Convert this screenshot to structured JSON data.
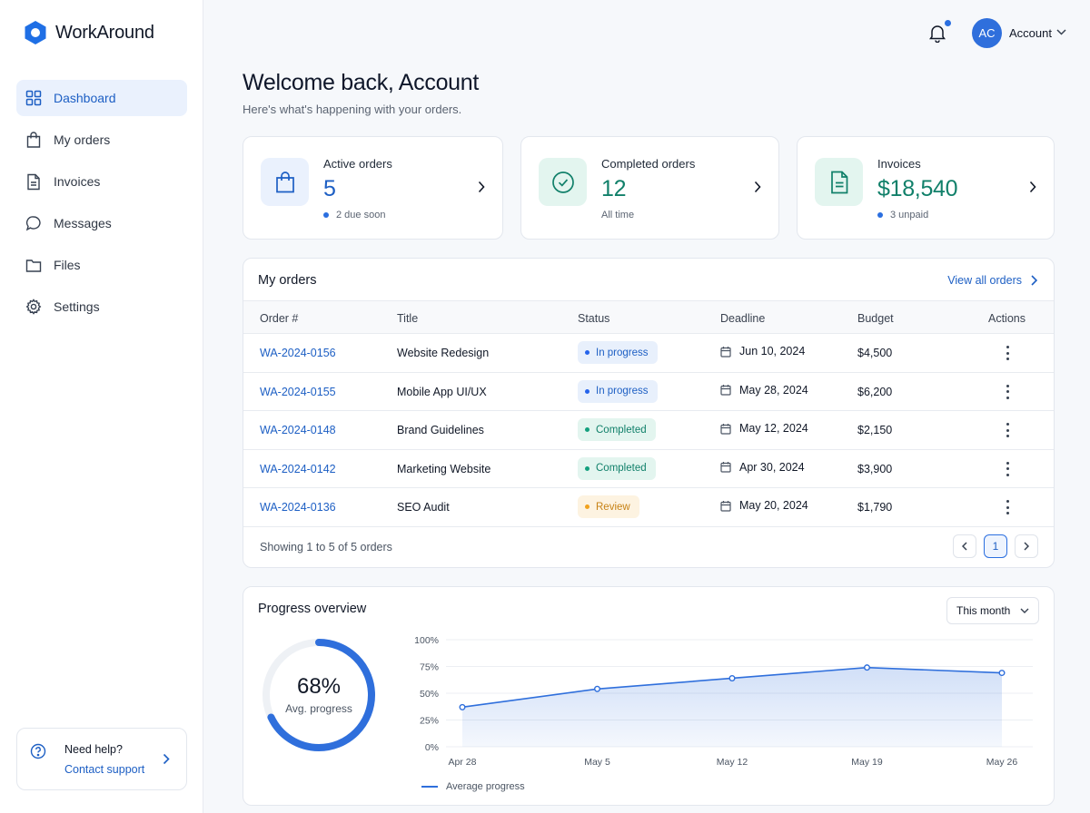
{
  "app": {
    "name": "WorkAround",
    "accent": "#1d5fc4"
  },
  "sidebar": {
    "items": [
      {
        "label": "Dashboard",
        "icon": "grid-icon",
        "active": true
      },
      {
        "label": "My orders",
        "icon": "shopping-bag-icon"
      },
      {
        "label": "Invoices",
        "icon": "document-icon"
      },
      {
        "label": "Messages",
        "icon": "chat-bubble-icon"
      },
      {
        "label": "Files",
        "icon": "folder-icon"
      },
      {
        "label": "Settings",
        "icon": "gear-icon"
      }
    ],
    "help": {
      "title": "Need help?",
      "link": "Contact support"
    }
  },
  "topbar": {
    "avatar_initials": "AC",
    "account_name": "Account",
    "has_notification": true
  },
  "header": {
    "title": "Welcome back, Account",
    "subtitle": "Here's what's happening with your orders."
  },
  "stats": [
    {
      "label": "Active orders",
      "value": "5",
      "sub": "2 due soon",
      "icon": "shopping-bag-icon",
      "color": "#1d5fc4"
    },
    {
      "label": "Completed orders",
      "value": "12",
      "sub": "All time",
      "icon": "check-circle-icon",
      "color": "#11806a"
    },
    {
      "label": "Invoices",
      "value": "$18,540",
      "sub": "3 unpaid",
      "icon": "document-icon",
      "color": "#11806a"
    }
  ],
  "orders": {
    "title": "My orders",
    "view_all": "View all orders",
    "columns": [
      "Order #",
      "Title",
      "Status",
      "Deadline",
      "Budget",
      "Actions"
    ],
    "rows": [
      {
        "id": "WA-2024-0156",
        "title": "Website Redesign",
        "status": "In progress",
        "deadline": "Jun 10, 2024",
        "budget": "$4,500"
      },
      {
        "id": "WA-2024-0155",
        "title": "Mobile App UI/UX",
        "status": "In progress",
        "deadline": "May 28, 2024",
        "budget": "$6,200"
      },
      {
        "id": "WA-2024-0148",
        "title": "Brand Guidelines",
        "status": "Completed",
        "deadline": "May 12, 2024",
        "budget": "$2,150"
      },
      {
        "id": "WA-2024-0142",
        "title": "Marketing Website",
        "status": "Completed",
        "deadline": "Apr 30, 2024",
        "budget": "$3,900"
      },
      {
        "id": "WA-2024-0136",
        "title": "SEO Audit",
        "status": "Review",
        "deadline": "May 20, 2024",
        "budget": "$1,790"
      }
    ],
    "footer": "Showing 1 to 5 of 5 orders",
    "current_page": "1"
  },
  "progress": {
    "title": "Progress overview",
    "period": "This month",
    "average_value": "68%",
    "average_label": "Avg. progress",
    "average_fraction": 0.68
  },
  "chart_data": {
    "type": "area",
    "x": [
      "Apr 28",
      "May 5",
      "May 12",
      "May 19",
      "May 26"
    ],
    "series": [
      {
        "name": "Average progress",
        "values": [
          37,
          54,
          64,
          74,
          69
        ]
      }
    ],
    "ylim": [
      0,
      100
    ],
    "yticks": [
      "0%",
      "25%",
      "50%",
      "75%",
      "100%"
    ],
    "grid": true,
    "legend": "bottom-left",
    "color": "#2f6fdc"
  }
}
